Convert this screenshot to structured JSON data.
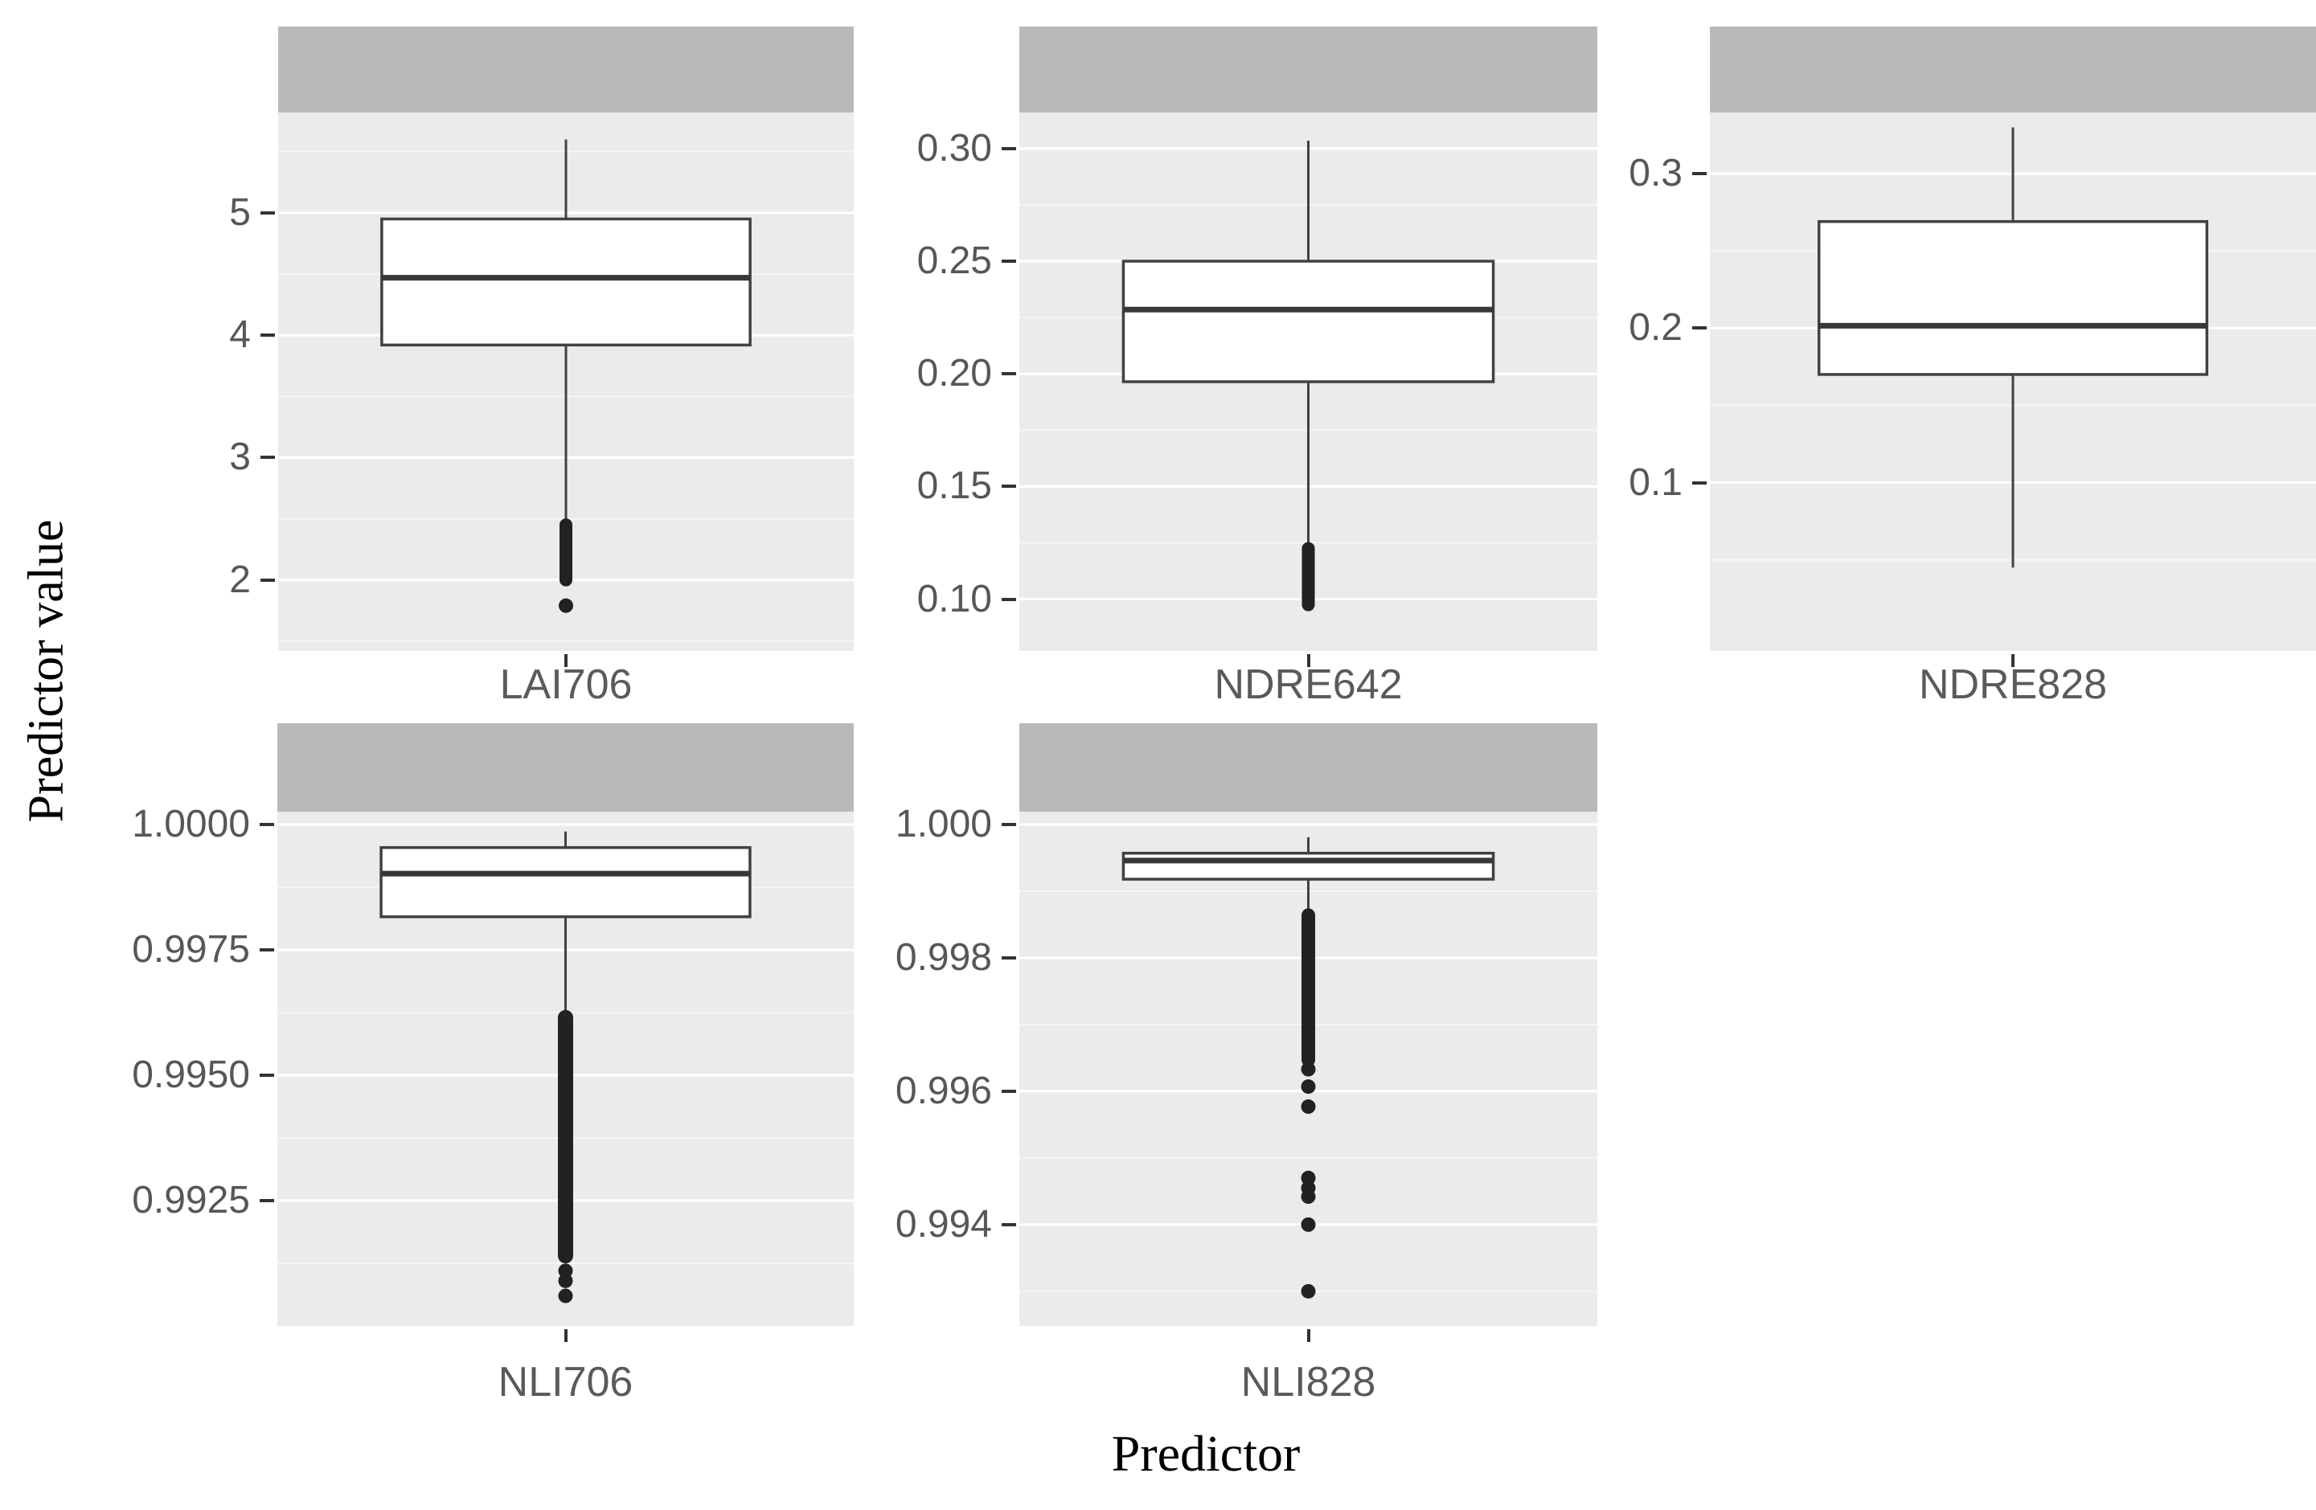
{
  "chart_data": {
    "type": "boxplot",
    "title": "",
    "xlabel": "Predictor",
    "ylabel": "Predictor value",
    "legend": "none",
    "grid": "major-and-minor-white-on-grey",
    "facet_strips_empty": true,
    "colors": {
      "strip_background": "#b9b9b9",
      "panel_background": "#ebebeb",
      "major_gridline": "#ffffff",
      "minor_gridline": "#f5f5f5",
      "box_stroke": "#414141",
      "median_stroke": "#383838",
      "outlier_fill": "#222222",
      "tick_label": "#575757",
      "axis_title": "#000000"
    },
    "facets": [
      {
        "label": "LAI706",
        "row": 0,
        "col": 0,
        "ylim": [
          1.42,
          5.82
        ],
        "yticks": [
          {
            "value": 5,
            "label": "5"
          },
          {
            "value": 4,
            "label": "4"
          },
          {
            "value": 3,
            "label": "3"
          },
          {
            "value": 2,
            "label": "2"
          }
        ],
        "yminor": [
          1.5,
          2.5,
          3.5,
          4.5,
          5.5
        ],
        "box": {
          "whisker_low": 2.45,
          "q1": 3.92,
          "median": 4.47,
          "q3": 4.95,
          "whisker_high": 5.6
        },
        "outlier_runs": [
          [
            2.0,
            2.45
          ]
        ],
        "outliers": [
          1.79
        ],
        "run_width": 16
      },
      {
        "label": "NDRE642",
        "row": 0,
        "col": 1,
        "ylim": [
          0.077,
          0.316
        ],
        "yticks": [
          {
            "value": 0.3,
            "label": "0.30"
          },
          {
            "value": 0.25,
            "label": "0.25"
          },
          {
            "value": 0.2,
            "label": "0.20"
          },
          {
            "value": 0.15,
            "label": "0.15"
          },
          {
            "value": 0.1,
            "label": "0.10"
          }
        ],
        "yminor": [
          0.125,
          0.175,
          0.225,
          0.275
        ],
        "box": {
          "whisker_low": 0.1225,
          "q1": 0.1965,
          "median": 0.2285,
          "q3": 0.25,
          "whisker_high": 0.3035
        },
        "outlier_runs": [
          [
            0.0975,
            0.1225
          ]
        ],
        "outliers": [],
        "run_width": 16
      },
      {
        "label": "NDRE828",
        "row": 0,
        "col": 2,
        "ylim": [
          -0.009,
          0.3396
        ],
        "yticks": [
          {
            "value": 0.3,
            "label": "0.3"
          },
          {
            "value": 0.2,
            "label": "0.2"
          },
          {
            "value": 0.1,
            "label": "0.1"
          }
        ],
        "yminor": [
          0.05,
          0.15,
          0.25
        ],
        "box": {
          "whisker_low": 0.045,
          "q1": 0.17,
          "median": 0.2015,
          "q3": 0.269,
          "whisker_high": 0.33
        },
        "outlier_runs": [],
        "outliers": [],
        "run_width": 16
      },
      {
        "label": "NLI706",
        "row": 1,
        "col": 0,
        "ylim": [
          0.99,
          1.000256
        ],
        "yticks": [
          {
            "value": 1.0,
            "label": "1.0000"
          },
          {
            "value": 0.9975,
            "label": "0.9975"
          },
          {
            "value": 0.995,
            "label": "0.9950"
          },
          {
            "value": 0.9925,
            "label": "0.9925"
          }
        ],
        "yminor": [
          0.99125,
          0.99375,
          0.99625,
          0.99875
        ],
        "box": {
          "whisker_low": 0.99615,
          "q1": 0.99816,
          "median": 0.99902,
          "q3": 0.99954,
          "whisker_high": 0.99986
        },
        "outlier_runs": [
          [
            0.9914,
            0.99615
          ]
        ],
        "outliers": [
          0.9911,
          0.9909,
          0.9906
        ],
        "run_width": 19
      },
      {
        "label": "NLI828",
        "row": 1,
        "col": 1,
        "ylim": [
          0.99248,
          1.000193
        ],
        "yticks": [
          {
            "value": 1.0,
            "label": "1.000"
          },
          {
            "value": 0.998,
            "label": "0.998"
          },
          {
            "value": 0.996,
            "label": "0.996"
          },
          {
            "value": 0.994,
            "label": "0.994"
          }
        ],
        "yminor": [
          0.993,
          0.995,
          0.997,
          0.999
        ],
        "box": {
          "whisker_low": 0.99872,
          "q1": 0.99918,
          "median": 0.99946,
          "q3": 0.99957,
          "whisker_high": 0.99981
        },
        "outlier_runs": [
          [
            0.99647,
            0.99864
          ]
        ],
        "outliers": [
          0.99633,
          0.99607,
          0.99577,
          0.9947,
          0.99455,
          0.99442,
          0.994,
          0.993
        ],
        "run_width": 17
      }
    ]
  }
}
